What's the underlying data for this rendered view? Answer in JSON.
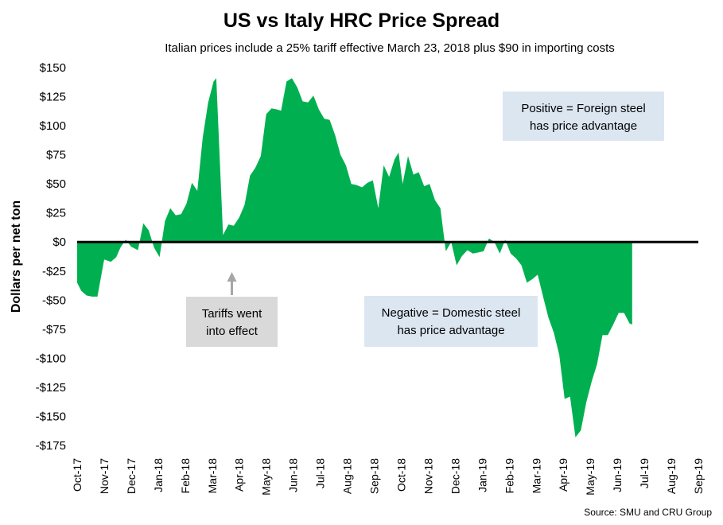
{
  "chart_data": {
    "type": "area",
    "title": "US vs Italy HRC Price Spread",
    "subtitle": "Italian prices include a 25% tariff effective March 23, 2018 plus $90 in importing costs",
    "ylabel": "Dollars per net ton",
    "xlabel": "",
    "ylim": [
      -175,
      150
    ],
    "y_ticks": [
      150,
      125,
      100,
      75,
      50,
      25,
      0,
      -25,
      -50,
      -75,
      -100,
      -125,
      -150,
      -175
    ],
    "y_tick_labels": [
      "$150",
      "$125",
      "$100",
      "$75",
      "$50",
      "$25",
      "$0",
      "-$25",
      "-$50",
      "-$75",
      "-$100",
      "-$125",
      "-$150",
      "-$175"
    ],
    "x_tick_labels": [
      "Oct-17",
      "Nov-17",
      "Dec-17",
      "Jan-18",
      "Feb-18",
      "Mar-18",
      "Apr-18",
      "May-18",
      "Jun-18",
      "Jul-18",
      "Aug-18",
      "Sep-18",
      "Oct-18",
      "Nov-18",
      "Dec-18",
      "Jan-19",
      "Feb-19",
      "Mar-19",
      "Apr-19",
      "May-19",
      "Jun-19",
      "Jul-19",
      "Aug-19",
      "Sep-19"
    ],
    "x_range": [
      0,
      23
    ],
    "grid": false,
    "series": [
      {
        "color": "#00b050",
        "points": [
          [
            0.0,
            -35
          ],
          [
            0.15,
            -42
          ],
          [
            0.35,
            -46
          ],
          [
            0.55,
            -47
          ],
          [
            0.75,
            -47
          ],
          [
            1.0,
            -15
          ],
          [
            1.25,
            -17
          ],
          [
            1.45,
            -13
          ],
          [
            1.6,
            -5
          ],
          [
            1.8,
            2
          ],
          [
            2.0,
            -4
          ],
          [
            2.25,
            -7
          ],
          [
            2.45,
            16
          ],
          [
            2.65,
            10
          ],
          [
            2.85,
            -5
          ],
          [
            3.05,
            -13
          ],
          [
            3.25,
            18
          ],
          [
            3.45,
            29
          ],
          [
            3.65,
            23
          ],
          [
            3.85,
            24
          ],
          [
            4.05,
            33
          ],
          [
            4.25,
            51
          ],
          [
            4.45,
            44
          ],
          [
            4.65,
            90
          ],
          [
            4.85,
            120
          ],
          [
            5.05,
            138
          ],
          [
            5.15,
            141
          ],
          [
            5.4,
            6
          ],
          [
            5.6,
            15
          ],
          [
            5.8,
            14
          ],
          [
            6.0,
            21
          ],
          [
            6.2,
            32
          ],
          [
            6.4,
            57
          ],
          [
            6.6,
            64
          ],
          [
            6.8,
            74
          ],
          [
            7.0,
            110
          ],
          [
            7.2,
            115
          ],
          [
            7.4,
            114
          ],
          [
            7.55,
            113
          ],
          [
            7.75,
            138
          ],
          [
            7.95,
            141
          ],
          [
            8.15,
            133
          ],
          [
            8.35,
            121
          ],
          [
            8.55,
            120
          ],
          [
            8.75,
            126
          ],
          [
            8.95,
            114
          ],
          [
            9.15,
            106
          ],
          [
            9.35,
            105
          ],
          [
            9.55,
            92
          ],
          [
            9.75,
            75
          ],
          [
            9.95,
            66
          ],
          [
            10.15,
            50
          ],
          [
            10.35,
            49
          ],
          [
            10.55,
            47
          ],
          [
            10.75,
            51
          ],
          [
            10.95,
            53
          ],
          [
            11.15,
            29
          ],
          [
            11.35,
            66
          ],
          [
            11.55,
            56
          ],
          [
            11.75,
            71
          ],
          [
            11.9,
            77
          ],
          [
            12.05,
            50
          ],
          [
            12.25,
            74
          ],
          [
            12.45,
            58
          ],
          [
            12.65,
            60
          ],
          [
            12.85,
            48
          ],
          [
            13.05,
            50
          ],
          [
            13.25,
            36
          ],
          [
            13.45,
            29
          ],
          [
            13.65,
            -8
          ],
          [
            13.85,
            0
          ],
          [
            14.05,
            -20
          ],
          [
            14.25,
            -12
          ],
          [
            14.45,
            -7
          ],
          [
            14.65,
            -10
          ],
          [
            14.85,
            -9
          ],
          [
            15.05,
            -8
          ],
          [
            15.25,
            3
          ],
          [
            15.45,
            0
          ],
          [
            15.65,
            -10
          ],
          [
            15.85,
            2
          ],
          [
            16.05,
            -10
          ],
          [
            16.25,
            -14
          ],
          [
            16.45,
            -20
          ],
          [
            16.65,
            -35
          ],
          [
            16.85,
            -32
          ],
          [
            17.05,
            -28
          ],
          [
            17.25,
            -47
          ],
          [
            17.45,
            -65
          ],
          [
            17.65,
            -78
          ],
          [
            17.85,
            -97
          ],
          [
            18.05,
            -135
          ],
          [
            18.25,
            -133
          ],
          [
            18.45,
            -168
          ],
          [
            18.65,
            -162
          ],
          [
            18.85,
            -138
          ],
          [
            19.05,
            -120
          ],
          [
            19.25,
            -105
          ],
          [
            19.45,
            -80
          ],
          [
            19.65,
            -80
          ],
          [
            19.85,
            -71
          ],
          [
            20.05,
            -61
          ],
          [
            20.25,
            -61
          ],
          [
            20.45,
            -70
          ],
          [
            20.55,
            -71
          ]
        ]
      }
    ],
    "annotations": [
      {
        "text_lines": [
          "Positive = Foreign steel",
          "has price advantage"
        ],
        "background": "#dce6f1"
      },
      {
        "text_lines": [
          "Negative = Domestic steel",
          "has price advantage"
        ],
        "background": "#dce6f1"
      },
      {
        "text_lines": [
          "Tariffs went",
          "into effect"
        ],
        "background": "#d9d9d9",
        "arrow_color": "#a6a6a6"
      }
    ],
    "source": "Source: SMU and CRU Group"
  }
}
